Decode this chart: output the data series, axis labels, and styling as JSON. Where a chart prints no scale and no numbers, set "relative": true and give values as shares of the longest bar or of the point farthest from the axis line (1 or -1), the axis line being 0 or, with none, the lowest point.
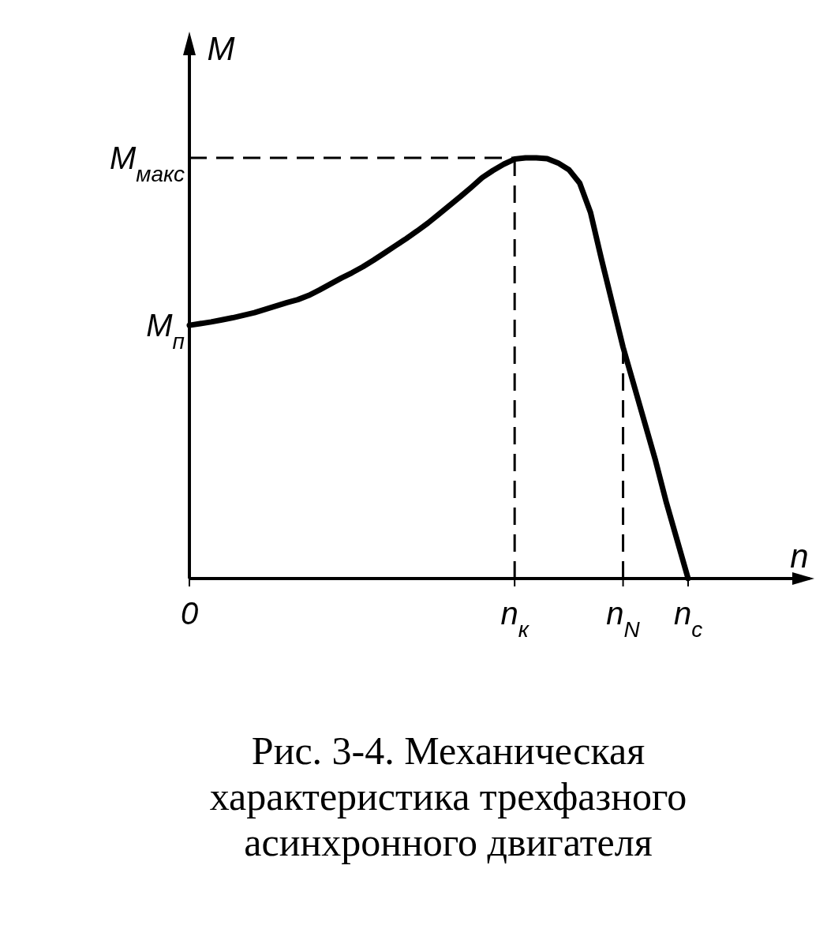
{
  "chart_data": {
    "type": "line",
    "relative": true,
    "title": "Рис. 3-4. Механическая характеристика трехфазного асинхронного двигателя",
    "xlabel": "n",
    "ylabel": "M",
    "categories": [
      "0",
      null,
      null,
      null,
      null,
      null,
      null,
      null,
      null,
      null,
      null,
      null,
      null,
      null,
      null,
      null,
      null,
      null,
      null,
      null,
      null,
      null,
      null,
      null,
      null,
      null,
      null,
      null,
      null,
      null,
      "n$_{к}$",
      null,
      null,
      null,
      null,
      null,
      null,
      null,
      null,
      null,
      "n$_{N}$",
      null,
      null,
      null,
      null,
      null,
      "n$_{c}$",
      null,
      null,
      null,
      null,
      null,
      null,
      null,
      null,
      null,
      null,
      null
    ],
    "series": [
      {
        "color": "#000000",
        "values": [
          0.602,
          0.606,
          0.61,
          0.615,
          0.62,
          0.626,
          0.632,
          0.64,
          0.648,
          0.656,
          0.663,
          0.673,
          0.686,
          0.7,
          0.714,
          0.727,
          0.741,
          0.757,
          0.774,
          0.791,
          0.808,
          0.826,
          0.845,
          0.866,
          0.887,
          0.908,
          0.93,
          0.953,
          0.97,
          0.985,
          0.997,
          1,
          1,
          0.998,
          0.988,
          0.972,
          0.94,
          0.87,
          0.76,
          0.655,
          0.55,
          0.46,
          0.37,
          0.28,
          0.18,
          0.09,
          0,
          null,
          null,
          null,
          null,
          null,
          null,
          null,
          null,
          null,
          null,
          null
        ]
      }
    ],
    "ref_lines": [
      {
        "axis": "y",
        "value": 1,
        "label": "M$_{макс}$",
        "line_style": "dashed",
        "color": "#000000"
      },
      {
        "axis": "x",
        "value": "n$_{к}$",
        "line_style": "dashed",
        "color": "#000000"
      },
      {
        "axis": "x",
        "value": "n$_{N}$",
        "line_style": "dashed",
        "color": "#000000"
      }
    ],
    "annotations": [
      {
        "text": "M$_{п}$",
        "x": "0",
        "y": 0.602
      }
    ],
    "line_style": "solid",
    "marker": "none"
  }
}
